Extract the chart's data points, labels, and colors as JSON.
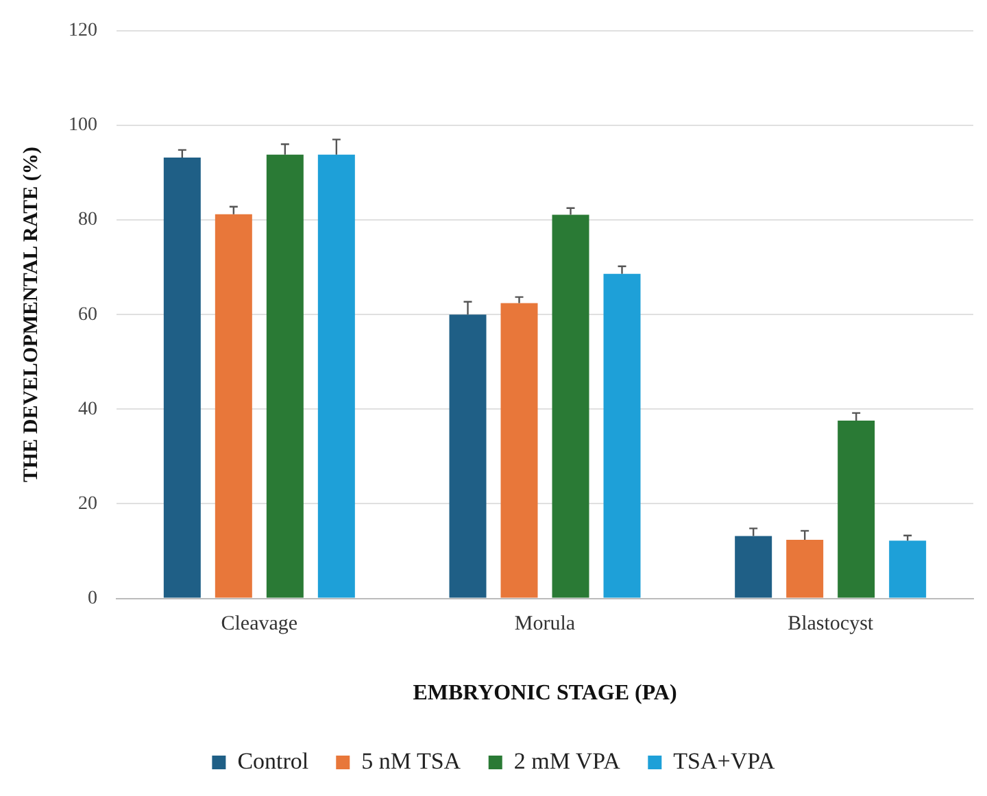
{
  "chart_data": {
    "type": "bar",
    "xlabel": "EMBRYONIC STAGE (PA)",
    "ylabel": "THE DEVELOPMENTAL RATE (%)",
    "categories": [
      "Cleavage",
      "Morula",
      "Blastocyst"
    ],
    "series": [
      {
        "name": "Control",
        "color": "#1f5f86",
        "values": [
          93.2,
          60.0,
          13.2
        ],
        "errors": [
          [
            93.2,
            94.8
          ],
          [
            60.0,
            62.7
          ],
          [
            13.2,
            14.8
          ]
        ]
      },
      {
        "name": "5 nM TSA",
        "color": "#e8773a",
        "values": [
          81.2,
          62.4,
          12.4
        ],
        "errors": [
          [
            81.2,
            82.8
          ],
          [
            62.4,
            63.7
          ],
          [
            12.4,
            14.3
          ]
        ]
      },
      {
        "name": "2 mM VPA",
        "color": "#2a7a35",
        "values": [
          93.8,
          81.1,
          37.6
        ],
        "errors": [
          [
            93.8,
            96.0
          ],
          [
            81.1,
            82.5
          ],
          [
            37.6,
            39.2
          ]
        ]
      },
      {
        "name": "TSA+VPA",
        "color": "#1ea0d8",
        "values": [
          93.8,
          68.6,
          12.2
        ],
        "errors": [
          [
            93.8,
            97.0
          ],
          [
            68.6,
            70.2
          ],
          [
            12.2,
            13.3
          ]
        ]
      }
    ],
    "ylim": [
      0,
      120
    ],
    "yticks": [
      0,
      20,
      40,
      60,
      80,
      100,
      120
    ],
    "grid": "y",
    "legend": "bottom"
  }
}
